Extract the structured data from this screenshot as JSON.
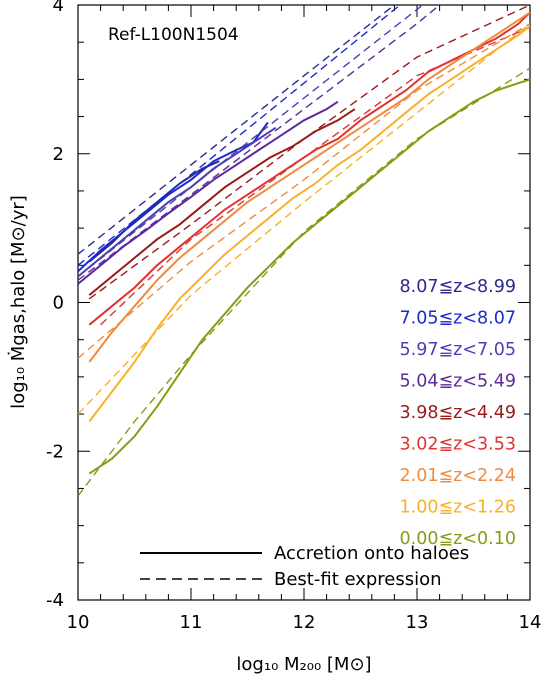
{
  "chart_data": {
    "type": "line",
    "title": "",
    "annotation": "Ref-L100N1504",
    "xlabel": "log₁₀ M₂₀₀ [M⊙]",
    "ylabel": "log₁₀ Ṁgas,halo [M⊙/yr]",
    "xlim": [
      10,
      14
    ],
    "ylim": [
      -4,
      4
    ],
    "x_ticks": [
      "10",
      "11",
      "12",
      "13",
      "14"
    ],
    "y_ticks": [
      "-4",
      "-2",
      "0",
      "2",
      "4"
    ],
    "x_tick_values": [
      10,
      11,
      12,
      13,
      14
    ],
    "y_tick_values": [
      -4,
      -2,
      0,
      2,
      4
    ],
    "grid": false,
    "legend_position": "bottom",
    "series_labels_position": "right",
    "line_styles": [
      {
        "label": "Accretion onto haloes",
        "dash": "solid"
      },
      {
        "label": "Best-fit expression",
        "dash": "dashed"
      }
    ],
    "series": [
      {
        "name": "8.07≦z<8.99",
        "color": "#2a2a8a",
        "accretion": [
          [
            10.1,
            0.55
          ],
          [
            10.3,
            0.8
          ],
          [
            10.5,
            1.1
          ],
          [
            10.7,
            1.35
          ],
          [
            10.9,
            1.6
          ],
          [
            11.1,
            1.8
          ],
          [
            11.25,
            1.9
          ]
        ],
        "fit": [
          [
            10.0,
            0.65
          ],
          [
            11.0,
            1.85
          ],
          [
            12.0,
            3.05
          ],
          [
            12.8,
            4.0
          ]
        ]
      },
      {
        "name": "7.05≦z<8.07",
        "color": "#1a2ad0",
        "accretion": [
          [
            10.0,
            0.42
          ],
          [
            10.2,
            0.7
          ],
          [
            10.4,
            0.95
          ],
          [
            10.6,
            1.2
          ],
          [
            10.8,
            1.45
          ],
          [
            11.0,
            1.65
          ],
          [
            11.2,
            1.9
          ],
          [
            11.4,
            2.05
          ],
          [
            11.55,
            2.15
          ],
          [
            11.68,
            2.42
          ]
        ],
        "fit": [
          [
            10.0,
            0.5
          ],
          [
            11.0,
            1.72
          ],
          [
            12.0,
            2.95
          ],
          [
            12.85,
            4.0
          ]
        ]
      },
      {
        "name": "5.97≦z<7.05",
        "color": "#4b3fb5",
        "accretion": [
          [
            10.0,
            0.35
          ],
          [
            10.2,
            0.6
          ],
          [
            10.4,
            0.85
          ],
          [
            10.6,
            1.1
          ],
          [
            10.8,
            1.35
          ],
          [
            11.0,
            1.55
          ],
          [
            11.2,
            1.8
          ],
          [
            11.4,
            2.0
          ],
          [
            11.6,
            2.2
          ],
          [
            11.75,
            2.35
          ]
        ],
        "fit": [
          [
            10.0,
            0.35
          ],
          [
            11.0,
            1.55
          ],
          [
            12.0,
            2.75
          ],
          [
            13.05,
            4.0
          ]
        ]
      },
      {
        "name": "5.04≦z<5.49",
        "color": "#5e2a9a",
        "accretion": [
          [
            10.0,
            0.25
          ],
          [
            10.2,
            0.5
          ],
          [
            10.4,
            0.75
          ],
          [
            10.6,
            0.97
          ],
          [
            10.8,
            1.2
          ],
          [
            11.0,
            1.42
          ],
          [
            11.2,
            1.65
          ],
          [
            11.4,
            1.85
          ],
          [
            11.6,
            2.05
          ],
          [
            11.8,
            2.25
          ],
          [
            12.0,
            2.45
          ],
          [
            12.2,
            2.6
          ],
          [
            12.3,
            2.7
          ]
        ],
        "fit": [
          [
            10.0,
            0.3
          ],
          [
            11.0,
            1.45
          ],
          [
            12.0,
            2.6
          ],
          [
            13.0,
            3.75
          ],
          [
            13.2,
            4.0
          ]
        ]
      },
      {
        "name": "3.98≦z<4.49",
        "color": "#9a1a1a",
        "accretion": [
          [
            10.1,
            0.1
          ],
          [
            10.3,
            0.35
          ],
          [
            10.5,
            0.6
          ],
          [
            10.7,
            0.85
          ],
          [
            10.9,
            1.05
          ],
          [
            11.1,
            1.3
          ],
          [
            11.3,
            1.55
          ],
          [
            11.5,
            1.75
          ],
          [
            11.7,
            1.95
          ],
          [
            11.9,
            2.1
          ],
          [
            12.1,
            2.3
          ],
          [
            12.3,
            2.45
          ],
          [
            12.45,
            2.6
          ]
        ],
        "fit": [
          [
            10.1,
            0.05
          ],
          [
            11.0,
            1.05
          ],
          [
            12.0,
            2.2
          ],
          [
            13.0,
            3.3
          ],
          [
            14.0,
            4.0
          ]
        ]
      },
      {
        "name": "3.02≦z<3.53",
        "color": "#e0332e",
        "accretion": [
          [
            10.1,
            -0.3
          ],
          [
            10.3,
            -0.05
          ],
          [
            10.5,
            0.2
          ],
          [
            10.7,
            0.5
          ],
          [
            10.9,
            0.75
          ],
          [
            11.1,
            1.0
          ],
          [
            11.3,
            1.25
          ],
          [
            11.5,
            1.45
          ],
          [
            11.7,
            1.65
          ],
          [
            11.9,
            1.85
          ],
          [
            12.1,
            2.05
          ],
          [
            12.3,
            2.2
          ],
          [
            12.5,
            2.45
          ],
          [
            12.7,
            2.65
          ],
          [
            12.9,
            2.85
          ],
          [
            13.1,
            3.1
          ],
          [
            13.3,
            3.25
          ],
          [
            13.5,
            3.4
          ],
          [
            13.7,
            3.55
          ],
          [
            13.9,
            3.75
          ],
          [
            14.0,
            3.9
          ]
        ],
        "fit": [
          [
            10.2,
            -0.3
          ],
          [
            11.0,
            0.85
          ],
          [
            12.0,
            1.95
          ],
          [
            13.0,
            3.05
          ],
          [
            14.0,
            3.7
          ]
        ]
      },
      {
        "name": "2.01≦z<2.24",
        "color": "#f08a3c",
        "accretion": [
          [
            10.1,
            -0.8
          ],
          [
            10.3,
            -0.4
          ],
          [
            10.5,
            -0.05
          ],
          [
            10.7,
            0.3
          ],
          [
            10.9,
            0.6
          ],
          [
            11.1,
            0.85
          ],
          [
            11.3,
            1.1
          ],
          [
            11.5,
            1.35
          ],
          [
            11.7,
            1.55
          ],
          [
            11.9,
            1.75
          ],
          [
            12.1,
            1.95
          ],
          [
            12.3,
            2.15
          ],
          [
            12.5,
            2.35
          ],
          [
            12.7,
            2.55
          ],
          [
            12.9,
            2.75
          ],
          [
            13.1,
            3.0
          ],
          [
            13.3,
            3.2
          ],
          [
            13.5,
            3.4
          ],
          [
            13.7,
            3.6
          ],
          [
            13.9,
            3.8
          ],
          [
            14.0,
            3.9
          ]
        ],
        "fit": [
          [
            10.0,
            -0.75
          ],
          [
            11.0,
            0.55
          ],
          [
            12.0,
            1.65
          ],
          [
            13.0,
            2.85
          ],
          [
            14.0,
            3.75
          ]
        ]
      },
      {
        "name": "1.00≦z<1.26",
        "color": "#f8b02a",
        "accretion": [
          [
            10.1,
            -1.6
          ],
          [
            10.3,
            -1.2
          ],
          [
            10.5,
            -0.8
          ],
          [
            10.7,
            -0.35
          ],
          [
            10.9,
            0.05
          ],
          [
            11.1,
            0.35
          ],
          [
            11.3,
            0.65
          ],
          [
            11.5,
            0.9
          ],
          [
            11.7,
            1.15
          ],
          [
            11.9,
            1.4
          ],
          [
            12.1,
            1.6
          ],
          [
            12.3,
            1.85
          ],
          [
            12.5,
            2.05
          ],
          [
            12.7,
            2.3
          ],
          [
            12.9,
            2.55
          ],
          [
            13.1,
            2.8
          ],
          [
            13.3,
            3.0
          ],
          [
            13.5,
            3.2
          ],
          [
            13.7,
            3.4
          ],
          [
            13.9,
            3.6
          ],
          [
            14.0,
            3.72
          ]
        ],
        "fit": [
          [
            10.0,
            -1.5
          ],
          [
            11.0,
            0.1
          ],
          [
            12.0,
            1.35
          ],
          [
            13.0,
            2.55
          ],
          [
            14.0,
            3.75
          ]
        ]
      },
      {
        "name": "0.00≦z<0.10",
        "color": "#8a9a14",
        "accretion": [
          [
            10.1,
            -2.3
          ],
          [
            10.3,
            -2.1
          ],
          [
            10.5,
            -1.8
          ],
          [
            10.7,
            -1.4
          ],
          [
            10.9,
            -0.95
          ],
          [
            11.1,
            -0.5
          ],
          [
            11.3,
            -0.15
          ],
          [
            11.5,
            0.2
          ],
          [
            11.7,
            0.5
          ],
          [
            11.9,
            0.8
          ],
          [
            12.1,
            1.05
          ],
          [
            12.3,
            1.3
          ],
          [
            12.5,
            1.55
          ],
          [
            12.7,
            1.8
          ],
          [
            12.9,
            2.05
          ],
          [
            13.1,
            2.3
          ],
          [
            13.3,
            2.5
          ],
          [
            13.5,
            2.7
          ],
          [
            13.7,
            2.85
          ],
          [
            13.9,
            2.95
          ],
          [
            14.0,
            3.0
          ]
        ],
        "fit": [
          [
            10.0,
            -2.6
          ],
          [
            10.5,
            -1.6
          ],
          [
            11.0,
            -0.7
          ],
          [
            12.0,
            0.95
          ],
          [
            13.0,
            2.2
          ],
          [
            14.0,
            3.15
          ]
        ]
      }
    ]
  }
}
